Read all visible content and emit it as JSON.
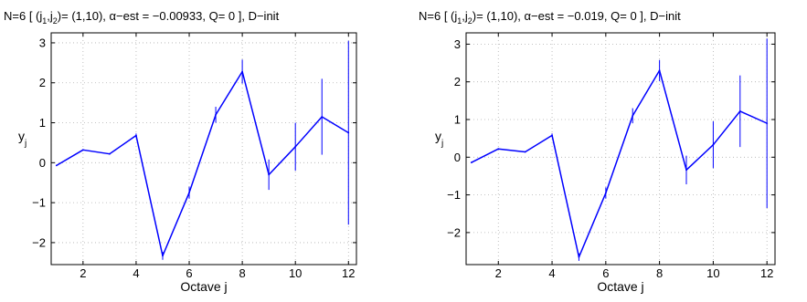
{
  "chart_data": [
    {
      "type": "line",
      "title_parts": {
        "prefix": "N=6   [ (j",
        "sub1": "1",
        "mid": ",j",
        "sub2": "2",
        "suffix": ")= (1,10),   α−est = −0.00933,     Q= 0 ],   D−init"
      },
      "xlabel": "Octave j",
      "ylabel_main": "y",
      "ylabel_sub": "j",
      "xlim": [
        0.8,
        12.3
      ],
      "ylim": [
        -2.55,
        3.25
      ],
      "xticks": [
        2,
        4,
        6,
        8,
        10,
        12
      ],
      "yticks": [
        -2,
        -1,
        0,
        1,
        2,
        3
      ],
      "ytick_labels": [
        "−2",
        "−1",
        "0",
        "1",
        "2",
        "3"
      ],
      "grid": true,
      "series_color": "#0000ff",
      "x": [
        1,
        2,
        3,
        4,
        5,
        6,
        7,
        8,
        9,
        10,
        11,
        12
      ],
      "y": [
        -0.07,
        0.32,
        0.22,
        0.68,
        -2.33,
        -0.75,
        1.2,
        2.28,
        -0.3,
        0.4,
        1.15,
        0.75
      ],
      "err": [
        0.0,
        0.0,
        0.0,
        0.05,
        0.1,
        0.15,
        0.2,
        0.3,
        0.38,
        0.6,
        0.95,
        2.3
      ]
    },
    {
      "type": "line",
      "title_parts": {
        "prefix": "N=6   [ (j",
        "sub1": "1",
        "mid": ",j",
        "sub2": "2",
        "suffix": ")= (1,10),   α−est = −0.019,     Q= 0 ],   D−init"
      },
      "xlabel": "Octave j",
      "ylabel_main": "y",
      "ylabel_sub": "j",
      "xlim": [
        0.8,
        12.3
      ],
      "ylim": [
        -2.85,
        3.3
      ],
      "xticks": [
        2,
        4,
        6,
        8,
        10,
        12
      ],
      "yticks": [
        -2,
        -1,
        0,
        1,
        2,
        3
      ],
      "ytick_labels": [
        "−2",
        "−1",
        "0",
        "1",
        "2",
        "3"
      ],
      "grid": true,
      "series_color": "#0000ff",
      "x": [
        1,
        2,
        3,
        4,
        5,
        6,
        7,
        8,
        9,
        10,
        11,
        12
      ],
      "y": [
        -0.14,
        0.22,
        0.14,
        0.58,
        -2.65,
        -0.95,
        1.1,
        2.3,
        -0.34,
        0.33,
        1.22,
        0.9
      ],
      "err": [
        0.0,
        0.0,
        0.0,
        0.05,
        0.1,
        0.15,
        0.2,
        0.28,
        0.38,
        0.62,
        0.95,
        2.25
      ]
    }
  ]
}
